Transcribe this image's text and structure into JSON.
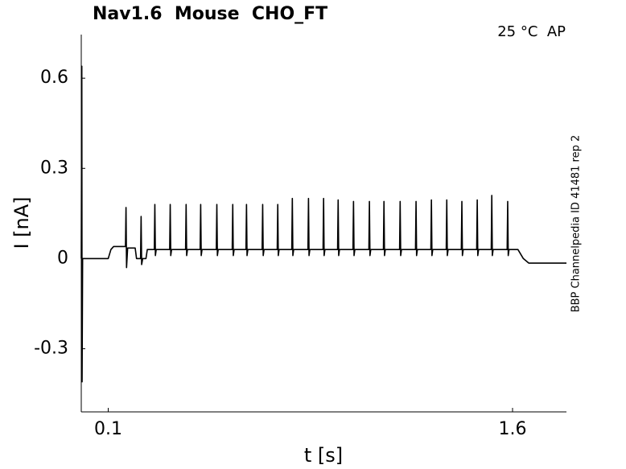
{
  "chart_data": {
    "type": "line",
    "title": "Nav1.6  Mouse  CHO_FT",
    "annotation": "25 °C  AP",
    "side_note": "BBP Channelpedia ID 41481 rep 2",
    "x_label": "t [s]",
    "y_label": "I [nA]",
    "xlim": [
      0,
      1.8
    ],
    "ylim": [
      -0.51,
      0.745
    ],
    "xticks": [
      0.1,
      1.6
    ],
    "yticks": [
      -0.3,
      0,
      0.3,
      0.6
    ],
    "series": [
      {
        "color": "#000000",
        "x": [
          0,
          0.002,
          0.003,
          0.005,
          0.1,
          0.11,
          0.12,
          0.164,
          0.166,
          0.168,
          0.172,
          0.2,
          0.205,
          0.22,
          0.222,
          0.224,
          0.228,
          0.24,
          0.245,
          0.271,
          0.273,
          0.275,
          0.278,
          0.328,
          0.33,
          0.332,
          0.335,
          0.387,
          0.389,
          0.391,
          0.394,
          0.441,
          0.443,
          0.445,
          0.448,
          0.501,
          0.503,
          0.505,
          0.508,
          0.56,
          0.562,
          0.564,
          0.567,
          0.611,
          0.613,
          0.615,
          0.618,
          0.671,
          0.673,
          0.675,
          0.678,
          0.727,
          0.729,
          0.731,
          0.734,
          0.781,
          0.783,
          0.785,
          0.788,
          0.841,
          0.843,
          0.845,
          0.848,
          0.897,
          0.899,
          0.901,
          0.904,
          0.951,
          0.953,
          0.955,
          0.958,
          1.008,
          1.01,
          1.012,
          1.015,
          1.067,
          1.069,
          1.071,
          1.074,
          1.121,
          1.123,
          1.125,
          1.128,
          1.181,
          1.183,
          1.185,
          1.188,
          1.24,
          1.242,
          1.244,
          1.247,
          1.297,
          1.299,
          1.301,
          1.304,
          1.354,
          1.356,
          1.358,
          1.361,
          1.41,
          1.412,
          1.414,
          1.417,
          1.467,
          1.469,
          1.471,
          1.474,
          1.521,
          1.523,
          1.525,
          1.528,
          1.58,
          1.582,
          1.584,
          1.587,
          1.62,
          1.64,
          1.66,
          1.8
        ],
        "values": [
          0,
          0.64,
          -0.41,
          0,
          0,
          0.03,
          0.04,
          0.04,
          0.17,
          -0.03,
          0.035,
          0.035,
          0,
          0,
          0.14,
          -0.02,
          0,
          0,
          0.03,
          0.03,
          0.18,
          0.01,
          0.03,
          0.03,
          0.18,
          0.01,
          0.03,
          0.03,
          0.18,
          0.01,
          0.03,
          0.03,
          0.18,
          0.01,
          0.03,
          0.03,
          0.18,
          0.01,
          0.03,
          0.03,
          0.18,
          0.01,
          0.03,
          0.03,
          0.18,
          0.01,
          0.03,
          0.03,
          0.18,
          0.01,
          0.03,
          0.03,
          0.18,
          0.01,
          0.03,
          0.03,
          0.2,
          0.01,
          0.03,
          0.03,
          0.2,
          0.01,
          0.03,
          0.03,
          0.2,
          0.01,
          0.03,
          0.03,
          0.195,
          0.01,
          0.03,
          0.03,
          0.19,
          0.01,
          0.03,
          0.03,
          0.19,
          0.01,
          0.03,
          0.03,
          0.19,
          0.01,
          0.03,
          0.03,
          0.19,
          0.01,
          0.03,
          0.03,
          0.19,
          0.01,
          0.03,
          0.03,
          0.195,
          0.01,
          0.03,
          0.03,
          0.195,
          0.01,
          0.03,
          0.03,
          0.19,
          0.01,
          0.03,
          0.03,
          0.195,
          0.01,
          0.03,
          0.03,
          0.21,
          0.01,
          0.03,
          0.03,
          0.19,
          0.01,
          0.03,
          0.03,
          0,
          -0.015,
          -0.015
        ]
      }
    ]
  }
}
